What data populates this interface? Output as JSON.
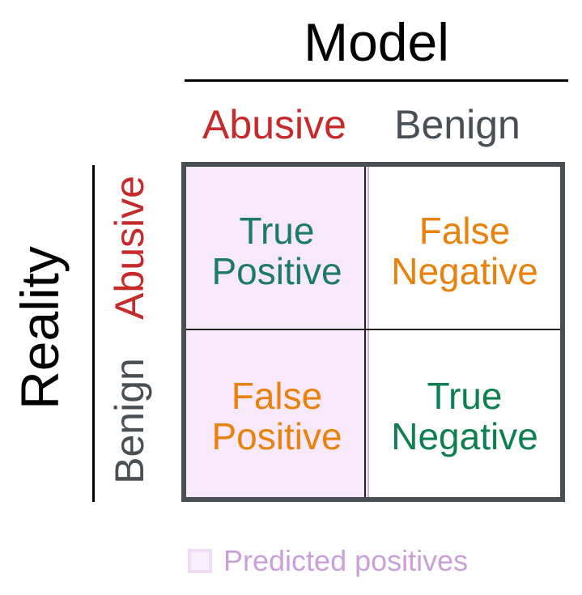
{
  "model_title": "Model",
  "reality_title": "Reality",
  "columns": {
    "abusive": "Abusive",
    "benign": "Benign"
  },
  "rows": {
    "abusive": "Abusive",
    "benign": "Benign"
  },
  "cells": {
    "tp": {
      "line1": "True",
      "line2": "Positive"
    },
    "fn": {
      "line1": "False",
      "line2": "Negative"
    },
    "fp": {
      "line1": "False",
      "line2": "Positive"
    },
    "tn": {
      "line1": "True",
      "line2": "Negative"
    }
  },
  "legend": {
    "label": "Predicted positives"
  },
  "colors": {
    "abusive_label": "#c62a2a",
    "benign_label": "#4a4f54",
    "true_positive": "#1c7a68",
    "false_outcome": "#e8820c",
    "true_negative": "#0e7f52",
    "predicted_positive_fill": "#f7e9fa",
    "legend_text": "#c9a0d8"
  }
}
